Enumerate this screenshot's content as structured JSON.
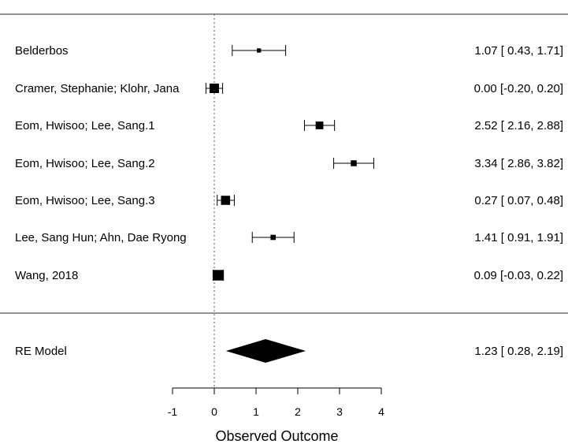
{
  "chart_data": {
    "type": "forest",
    "title": "",
    "xlabel": "Observed Outcome",
    "xticks": [
      -1,
      0,
      1,
      2,
      3,
      4
    ],
    "xlim": [
      -1,
      4
    ],
    "reference_line": 0,
    "colors": {
      "marks": "#000000",
      "rules": "#555555",
      "reference": "#555555"
    },
    "studies": [
      {
        "label": "Belderbos",
        "estimate": 1.07,
        "ci_lower": 0.43,
        "ci_upper": 1.71,
        "ci_text": "1.07 [ 0.43, 1.71]",
        "weight": 0.05
      },
      {
        "label": "Cramer, Stephanie; Klohr, Jana",
        "estimate": 0.0,
        "ci_lower": -0.2,
        "ci_upper": 0.2,
        "ci_text": "0.00 [-0.20, 0.20]",
        "weight": 0.2
      },
      {
        "label": "Eom, Hwisoo; Lee, Sang.1",
        "estimate": 2.52,
        "ci_lower": 2.16,
        "ci_upper": 2.88,
        "ci_text": "2.52 [ 2.16, 2.88]",
        "weight": 0.15
      },
      {
        "label": "Eom, Hwisoo; Lee, Sang.2",
        "estimate": 3.34,
        "ci_lower": 2.86,
        "ci_upper": 3.82,
        "ci_text": "3.34 [ 2.86, 3.82]",
        "weight": 0.1
      },
      {
        "label": "Eom, Hwisoo; Lee, Sang.3",
        "estimate": 0.27,
        "ci_lower": 0.07,
        "ci_upper": 0.48,
        "ci_text": "0.27 [ 0.07, 0.48]",
        "weight": 0.19
      },
      {
        "label": "Lee, Sang Hun; Ahn, Dae Ryong",
        "estimate": 1.41,
        "ci_lower": 0.91,
        "ci_upper": 1.91,
        "ci_text": "1.41 [ 0.91, 1.91]",
        "weight": 0.08
      },
      {
        "label": "Wang, 2018",
        "estimate": 0.09,
        "ci_lower": -0.03,
        "ci_upper": 0.22,
        "ci_text": "0.09 [-0.03, 0.22]",
        "weight": 0.23
      }
    ],
    "summary": {
      "label": "RE Model",
      "estimate": 1.23,
      "ci_lower": 0.28,
      "ci_upper": 2.19,
      "ci_text": "1.23 [ 0.28, 2.19]"
    }
  }
}
